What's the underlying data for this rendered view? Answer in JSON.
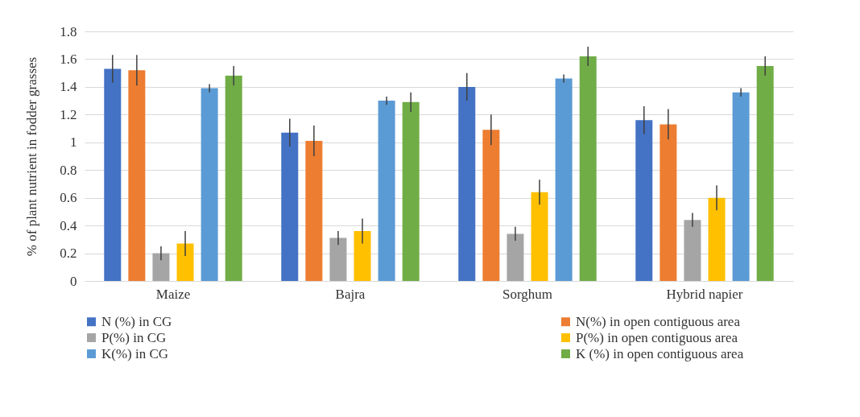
{
  "chart_data": {
    "type": "bar",
    "ylabel": "% of plant nutrient in fodder grasses",
    "categories": [
      "Maize",
      "Bajra",
      "Sorghum",
      "Hybrid napier"
    ],
    "series": [
      {
        "name": "N (%) in CG",
        "color": "#4472c4",
        "values": [
          1.53,
          1.07,
          1.4,
          1.16
        ],
        "errors": [
          0.1,
          0.1,
          0.1,
          0.1
        ]
      },
      {
        "name": "N(%) in open contiguous area",
        "color": "#ed7d31",
        "values": [
          1.52,
          1.01,
          1.09,
          1.13
        ],
        "errors": [
          0.11,
          0.11,
          0.11,
          0.11
        ]
      },
      {
        "name": "P(%) in CG",
        "color": "#a5a5a5",
        "values": [
          0.2,
          0.31,
          0.34,
          0.44
        ],
        "errors": [
          0.05,
          0.05,
          0.05,
          0.05
        ]
      },
      {
        "name": "P(%) in open contiguous area",
        "color": "#ffc000",
        "values": [
          0.27,
          0.36,
          0.64,
          0.6
        ],
        "errors": [
          0.09,
          0.09,
          0.09,
          0.09
        ]
      },
      {
        "name": "K(%) in CG",
        "color": "#5b9bd5",
        "values": [
          1.39,
          1.3,
          1.46,
          1.36
        ],
        "errors": [
          0.03,
          0.03,
          0.03,
          0.03
        ]
      },
      {
        "name": "K (%) in open contiguous area",
        "color": "#70ad47",
        "values": [
          1.48,
          1.29,
          1.62,
          1.55
        ],
        "errors": [
          0.07,
          0.07,
          0.07,
          0.07
        ]
      }
    ],
    "ylim": [
      0,
      1.8
    ],
    "yticks": [
      0,
      0.2,
      0.4,
      0.6,
      0.8,
      1,
      1.2,
      1.4,
      1.6,
      1.8
    ],
    "grid": "y",
    "legend": "bottom"
  }
}
